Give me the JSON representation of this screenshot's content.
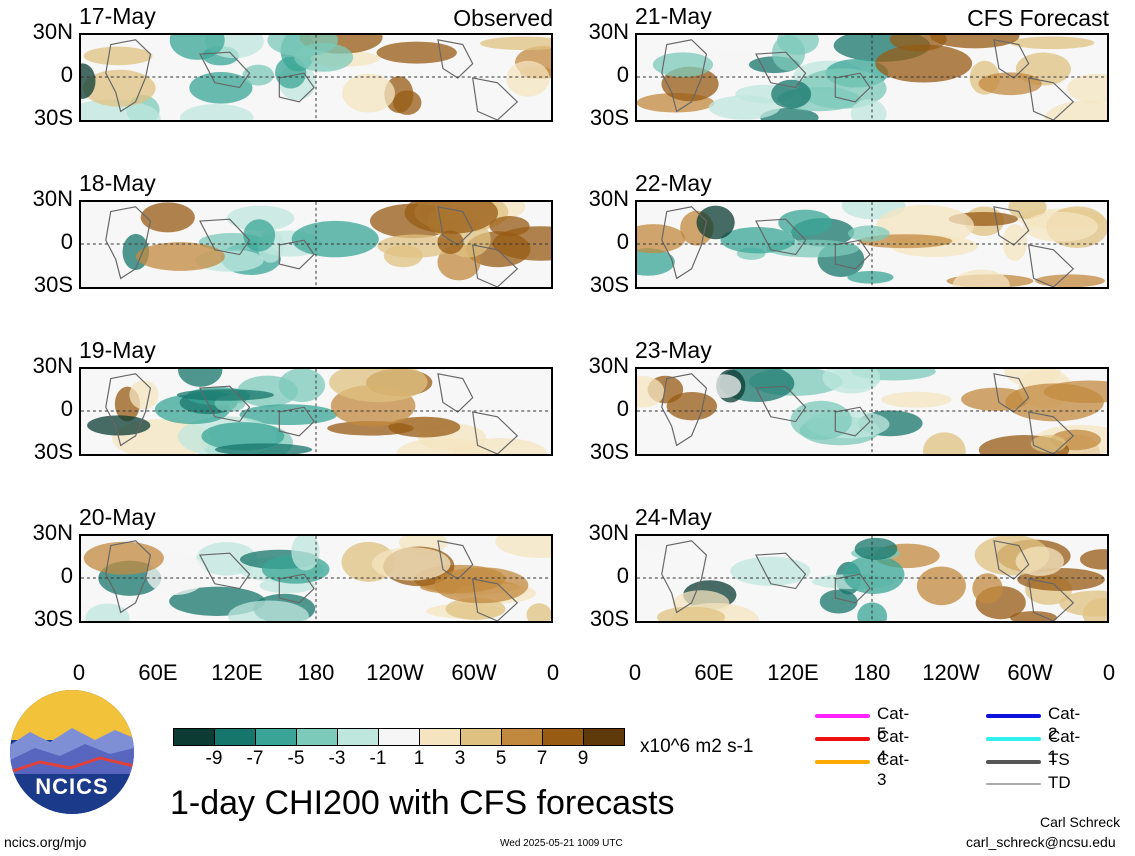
{
  "panels": [
    {
      "date": "17-May",
      "corner_label": "Observed"
    },
    {
      "date": "18-May",
      "corner_label": ""
    },
    {
      "date": "19-May",
      "corner_label": ""
    },
    {
      "date": "20-May",
      "corner_label": ""
    },
    {
      "date": "21-May",
      "corner_label": "CFS Forecast"
    },
    {
      "date": "22-May",
      "corner_label": ""
    },
    {
      "date": "23-May",
      "corner_label": ""
    },
    {
      "date": "24-May",
      "corner_label": ""
    }
  ],
  "lat_labels": [
    "30N",
    "0",
    "30S"
  ],
  "lon_labels": [
    "0",
    "60E",
    "120E",
    "180",
    "120W",
    "60W",
    "0"
  ],
  "colorbar": {
    "colors": [
      "#0b3b33",
      "#17766b",
      "#3aa596",
      "#7ccab9",
      "#bfe7de",
      "#f6f6f6",
      "#f4e4c0",
      "#dfc281",
      "#c1893f",
      "#975b14",
      "#5e3a0b"
    ],
    "labels": [
      "-9",
      "-7",
      "-5",
      "-3",
      "-1",
      "1",
      "3",
      "5",
      "7",
      "9"
    ],
    "units": "x10^6 m2 s-1"
  },
  "title": "1-day CHI200 with CFS forecasts",
  "legend": [
    {
      "label": "Cat-5",
      "color": "#ff22ff"
    },
    {
      "label": "Cat-4",
      "color": "#ee1111"
    },
    {
      "label": "Cat-3",
      "color": "#ffaa00"
    },
    {
      "label": "Cat-2",
      "color": "#1111dd"
    },
    {
      "label": "Cat-1",
      "color": "#33eeee"
    },
    {
      "label": "TS",
      "color": "#555555"
    },
    {
      "label": "TD",
      "color": "#aaaaaa"
    }
  ],
  "logo_text": "NCICS",
  "url": "ncics.org/mjo",
  "timestamp": "Wed 2025-05-21 1009 UTC",
  "author": "Carl Schreck",
  "email": "carl_schreck@ncsu.edu"
}
